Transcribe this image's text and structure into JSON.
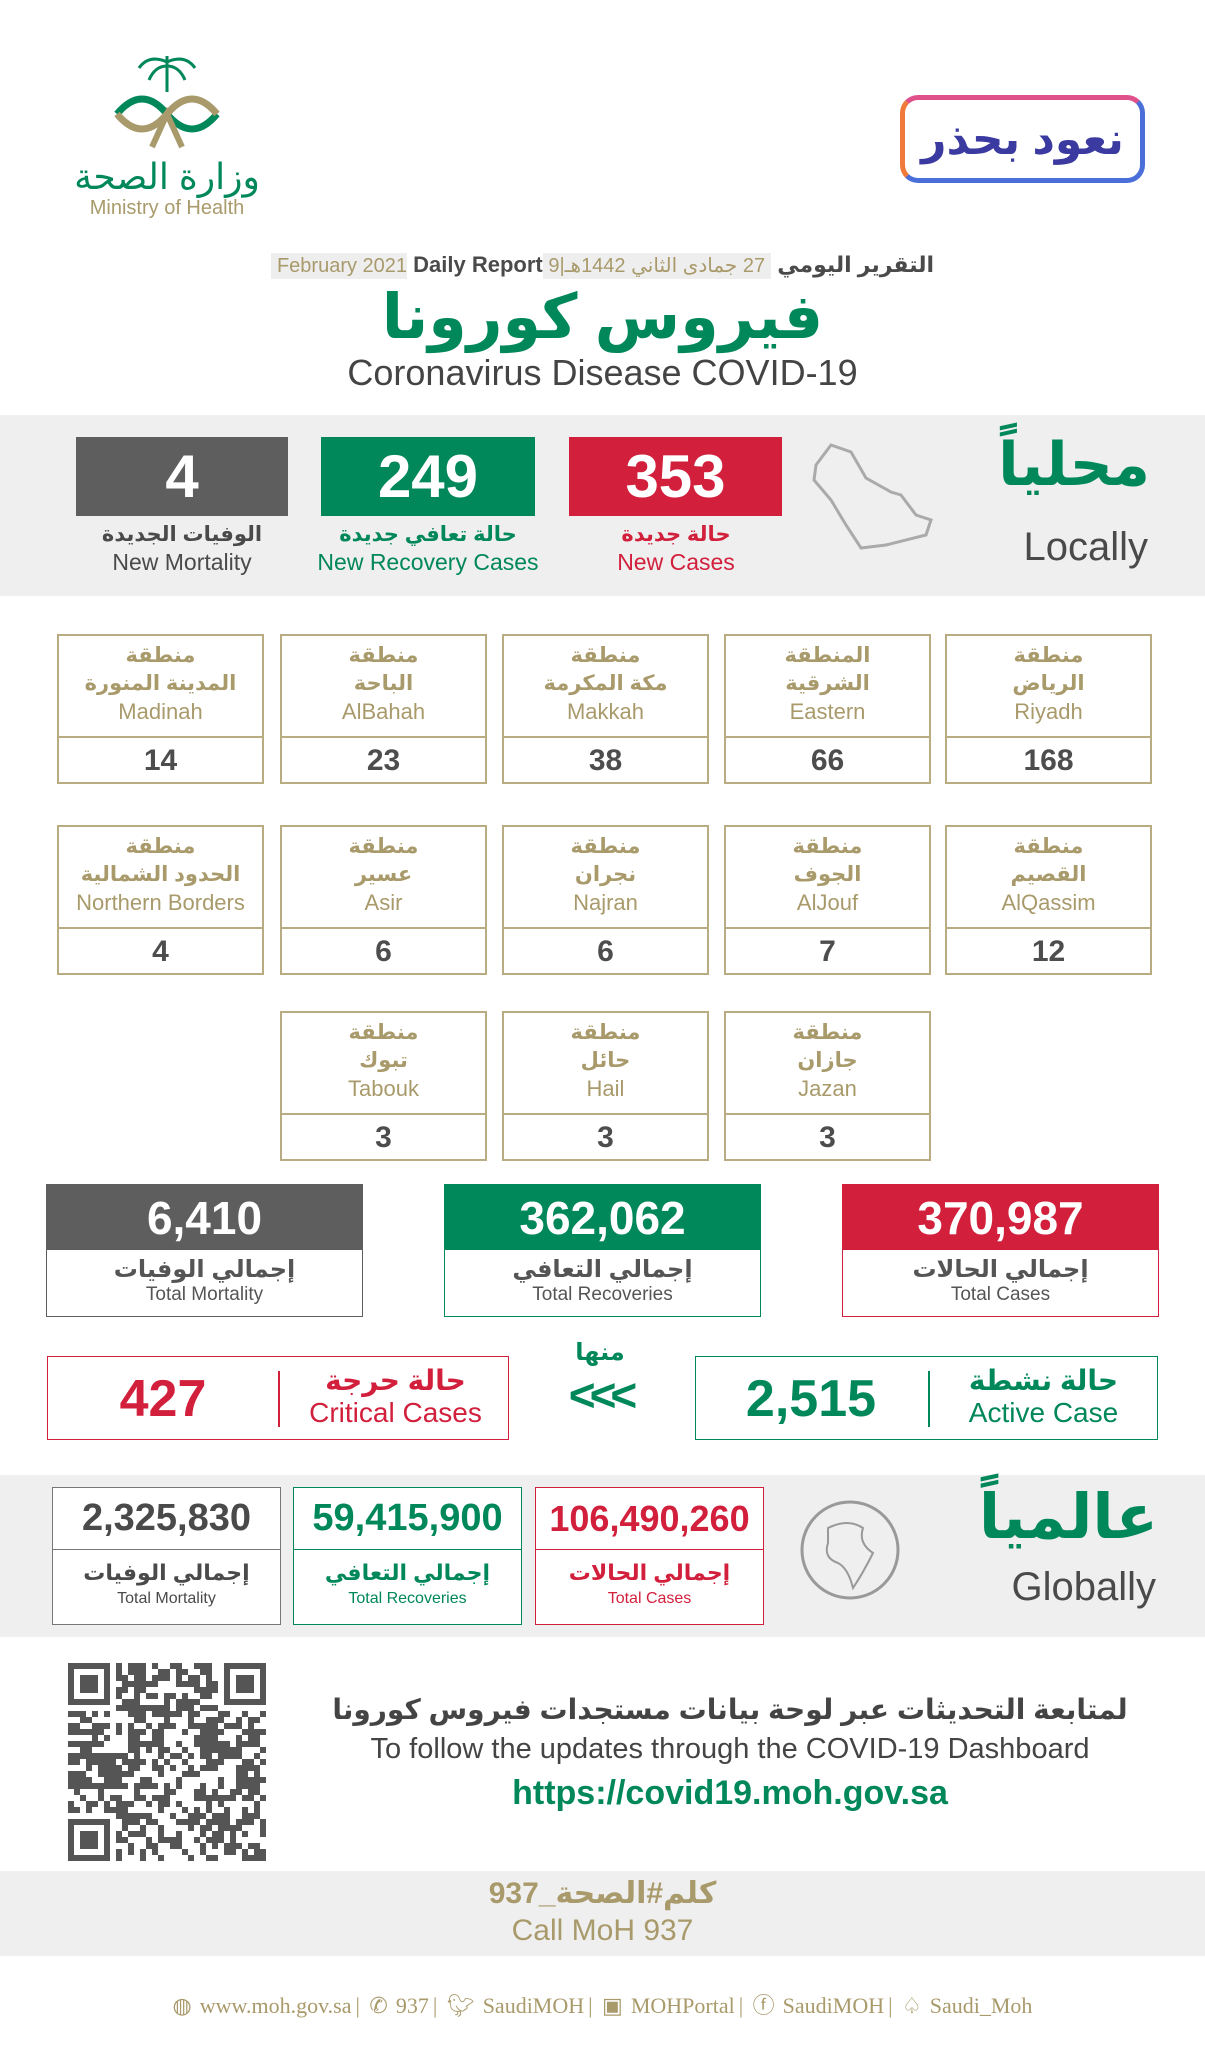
{
  "header": {
    "ministry_ar": "وزارة الصحة",
    "ministry_en": "Ministry of Health",
    "campaign_logo": "نعود بحذر",
    "daily_report_ar": "التقرير اليومي",
    "daily_report_en": "Daily Report",
    "date": "27 جمادى الثاني 1442هـ|9 February 2021",
    "title_ar": "فيروس كورونا",
    "title_en": "Coronavirus Disease COVID-19"
  },
  "local": {
    "heading_ar": "محلياً",
    "heading_en": "Locally",
    "new_cases": {
      "value": "353",
      "ar": "حالة جديدة",
      "en": "New Cases"
    },
    "new_recovery": {
      "value": "249",
      "ar": "حالة تعافي جديدة",
      "en": "New Recovery Cases"
    },
    "new_mortality": {
      "value": "4",
      "ar": "الوفيات الجديدة",
      "en": "New Mortality"
    }
  },
  "regions": [
    {
      "ar1": "منطقة",
      "ar2": "الرياض",
      "en": "Riyadh",
      "value": "168"
    },
    {
      "ar1": "المنطقة",
      "ar2": "الشرقية",
      "en": "Eastern",
      "value": "66"
    },
    {
      "ar1": "منطقة",
      "ar2": "مكة المكرمة",
      "en": "Makkah",
      "value": "38"
    },
    {
      "ar1": "منطقة",
      "ar2": "الباحة",
      "en": "AlBahah",
      "value": "23"
    },
    {
      "ar1": "منطقة",
      "ar2": "المدينة المنورة",
      "en": "Madinah",
      "value": "14"
    },
    {
      "ar1": "منطقة",
      "ar2": "القصيم",
      "en": "AlQassim",
      "value": "12"
    },
    {
      "ar1": "منطقة",
      "ar2": "الجوف",
      "en": "AlJouf",
      "value": "7"
    },
    {
      "ar1": "منطقة",
      "ar2": "نجران",
      "en": "Najran",
      "value": "6"
    },
    {
      "ar1": "منطقة",
      "ar2": "عسير",
      "en": "Asir",
      "value": "6"
    },
    {
      "ar1": "منطقة",
      "ar2": "الحدود الشمالية",
      "en": "Northern Borders",
      "value": "4"
    },
    {
      "ar1": "منطقة",
      "ar2": "جازان",
      "en": "Jazan",
      "value": "3"
    },
    {
      "ar1": "منطقة",
      "ar2": "حائل",
      "en": "Hail",
      "value": "3"
    },
    {
      "ar1": "منطقة",
      "ar2": "تبوك",
      "en": "Tabouk",
      "value": "3"
    }
  ],
  "totals": {
    "cases": {
      "value": "370,987",
      "ar": "إجمالي الحالات",
      "en": "Total Cases"
    },
    "recoveries": {
      "value": "362,062",
      "ar": "إجمالي التعافي",
      "en": "Total Recoveries"
    },
    "mortality": {
      "value": "6,410",
      "ar": "إجمالي الوفيات",
      "en": "Total Mortality"
    }
  },
  "active": {
    "value": "2,515",
    "ar": "حالة نشطة",
    "en": "Active Case"
  },
  "of_which": "منها",
  "arrows": "<<<",
  "critical": {
    "value": "427",
    "ar": "حالة حرجة",
    "en": "Critical Cases"
  },
  "global": {
    "heading_ar": "عالمياً",
    "heading_en": "Globally",
    "cases": {
      "value": "106,490,260",
      "ar": "إجمالي الحالات",
      "en": "Total Cases"
    },
    "recoveries": {
      "value": "59,415,900",
      "ar": "إجمالي التعافي",
      "en": "Total Recoveries"
    },
    "mortality": {
      "value": "2,325,830",
      "ar": "إجمالي الوفيات",
      "en": "Total Mortality"
    }
  },
  "dashboard": {
    "ar": "لمتابعة التحديثات عبر لوحة بيانات مستجدات فيروس كورونا",
    "en": "To follow the updates through the COVID-19 Dashboard",
    "url": "https://covid19.moh.gov.sa"
  },
  "call": {
    "ar": "كلم#الصحة_937",
    "en": "Call MoH 937"
  },
  "footer": [
    "www.moh.gov.sa",
    "937",
    "SaudiMOH",
    "MOHPortal",
    "SaudiMOH",
    "Saudi_Moh"
  ],
  "colors": {
    "red": "#d21f3c",
    "green": "#00875a",
    "gray": "#5e5e5e",
    "gold": "#a99a6b"
  }
}
